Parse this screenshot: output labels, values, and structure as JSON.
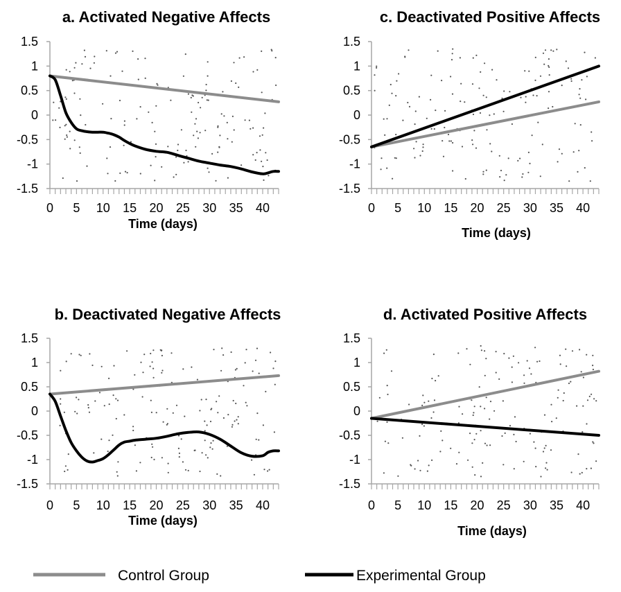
{
  "colors": {
    "control": "#8c8c8c",
    "experimental": "#000000",
    "axis": "#a6a6a6",
    "points": "#555555"
  },
  "legend": [
    {
      "label": "Control Group",
      "color": "#8c8c8c"
    },
    {
      "label": "Experimental Group",
      "color": "#000000"
    }
  ],
  "chart_data": [
    {
      "type": "line",
      "title": "a. Activated Negative Affects",
      "xlabel": "Time (days)",
      "ylabel": "",
      "xlim": [
        0,
        43
      ],
      "ylim": [
        -1.5,
        1.5
      ],
      "xticks": [
        0,
        5,
        10,
        15,
        20,
        25,
        30,
        35,
        40
      ],
      "yticks": [
        "1.5",
        "1",
        "0.5",
        "0",
        "-0.5",
        "-1",
        "-1.5"
      ],
      "series": [
        {
          "group": "control",
          "x": [
            0,
            43
          ],
          "y": [
            0.8,
            0.27
          ]
        },
        {
          "group": "experimental",
          "x": [
            0,
            1,
            2,
            3,
            4,
            5,
            6,
            7,
            8,
            9,
            10,
            11,
            12,
            13,
            14,
            15,
            16,
            18,
            20,
            22,
            24,
            26,
            28,
            30,
            32,
            34,
            36,
            38,
            40,
            41,
            42,
            43
          ],
          "y": [
            0.8,
            0.72,
            0.4,
            0.05,
            -0.15,
            -0.28,
            -0.32,
            -0.34,
            -0.35,
            -0.35,
            -0.35,
            -0.37,
            -0.4,
            -0.45,
            -0.52,
            -0.58,
            -0.63,
            -0.7,
            -0.74,
            -0.76,
            -0.82,
            -0.88,
            -0.94,
            -0.98,
            -1.02,
            -1.05,
            -1.1,
            -1.16,
            -1.2,
            -1.18,
            -1.15,
            -1.15
          ]
        }
      ]
    },
    {
      "type": "line",
      "title": "b. Deactivated Negative Affects",
      "xlabel": "Time (days)",
      "ylabel": "",
      "xlim": [
        0,
        43
      ],
      "ylim": [
        -1.5,
        1.5
      ],
      "xticks": [
        0,
        5,
        10,
        15,
        20,
        25,
        30,
        35,
        40
      ],
      "yticks": [
        "1.5",
        "1",
        "0.5",
        "0",
        "-0.5",
        "-1",
        "-1.5"
      ],
      "series": [
        {
          "group": "control",
          "x": [
            0,
            43
          ],
          "y": [
            0.35,
            0.73
          ]
        },
        {
          "group": "experimental",
          "x": [
            0,
            1,
            2,
            3,
            4,
            5,
            6,
            7,
            8,
            9,
            10,
            11,
            12,
            13,
            14,
            15,
            16,
            18,
            20,
            22,
            24,
            26,
            28,
            30,
            32,
            34,
            36,
            38,
            40,
            41,
            42,
            43
          ],
          "y": [
            0.35,
            0.2,
            -0.1,
            -0.4,
            -0.65,
            -0.82,
            -0.95,
            -1.03,
            -1.05,
            -1.02,
            -0.98,
            -0.9,
            -0.8,
            -0.7,
            -0.64,
            -0.62,
            -0.6,
            -0.58,
            -0.56,
            -0.52,
            -0.47,
            -0.44,
            -0.43,
            -0.48,
            -0.58,
            -0.72,
            -0.86,
            -0.93,
            -0.92,
            -0.85,
            -0.82,
            -0.82
          ]
        }
      ]
    },
    {
      "type": "line",
      "title": "c. Deactivated Positive Affects",
      "xlabel": "Time (days)",
      "ylabel": "",
      "xlim": [
        0,
        43
      ],
      "ylim": [
        -1.5,
        1.5
      ],
      "xticks": [
        0,
        5,
        10,
        15,
        20,
        25,
        30,
        35,
        40
      ],
      "yticks": [
        "1.5",
        "1",
        "0.5",
        "0",
        "-0.5",
        "-1",
        "-1.5"
      ],
      "series": [
        {
          "group": "control",
          "x": [
            0,
            43
          ],
          "y": [
            -0.65,
            0.27
          ]
        },
        {
          "group": "experimental",
          "x": [
            0,
            43
          ],
          "y": [
            -0.65,
            1.0
          ]
        }
      ]
    },
    {
      "type": "line",
      "title": "d. Activated Positive Affects",
      "xlabel": "Time (days)",
      "ylabel": "",
      "xlim": [
        0,
        43
      ],
      "ylim": [
        -1.5,
        1.5
      ],
      "xticks": [
        0,
        5,
        10,
        15,
        20,
        25,
        30,
        35,
        40
      ],
      "yticks": [
        "1.5",
        "1",
        "0.5",
        "0",
        "-0.5",
        "-1",
        "-1.5"
      ],
      "series": [
        {
          "group": "control",
          "x": [
            0,
            43
          ],
          "y": [
            -0.15,
            0.82
          ]
        },
        {
          "group": "experimental",
          "x": [
            0,
            43
          ],
          "y": [
            -0.15,
            -0.5
          ]
        }
      ]
    }
  ]
}
